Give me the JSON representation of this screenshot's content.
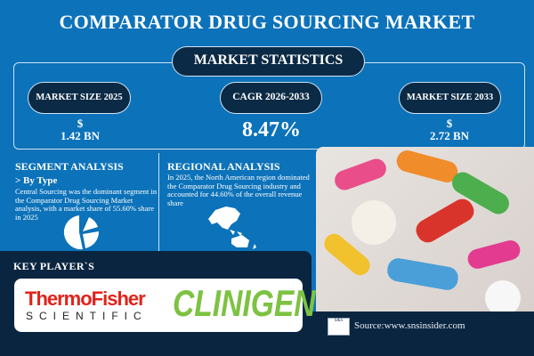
{
  "header": {
    "title": "COMPARATOR DRUG SOURCING MARKET"
  },
  "stats": {
    "heading": "MARKET STATISTICS",
    "items": [
      {
        "label": "MARKET SIZE 2025",
        "currency": "$",
        "value": "1.42 BN"
      },
      {
        "label": "CAGR 2026-2033",
        "value": "8.47%"
      },
      {
        "label": "MARKET SIZE 2033",
        "currency": "$",
        "value": "2.72 BN"
      }
    ]
  },
  "segment": {
    "heading": "SEGMENT ANALYSIS",
    "subheading": "> By Type",
    "text": "Central Sourcing was the dominant segment in the Comparator Drug Sourcing Market analysis, with a market share of 55.60% share in 2025",
    "share_percent": 55.6
  },
  "regional": {
    "heading": "REGIONAL ANALYSIS",
    "text": "In 2025, the North American region dominated the Comparator Drug Sourcing industry and accounted for 44.60% of the overall revenue share"
  },
  "key_players": {
    "heading": "KEY PLAYER`S",
    "logos": [
      {
        "name": "ThermoFisher",
        "sub": "SCIENTIFIC",
        "color": "#e2231a"
      },
      {
        "name": "CLINIGEN",
        "color": "#7dc242"
      }
    ]
  },
  "footer": {
    "source": "Source:www.snsinsider.com",
    "logo_text": "S&S"
  },
  "colors": {
    "background": "#0c72b9",
    "navy": "#0a2540"
  }
}
